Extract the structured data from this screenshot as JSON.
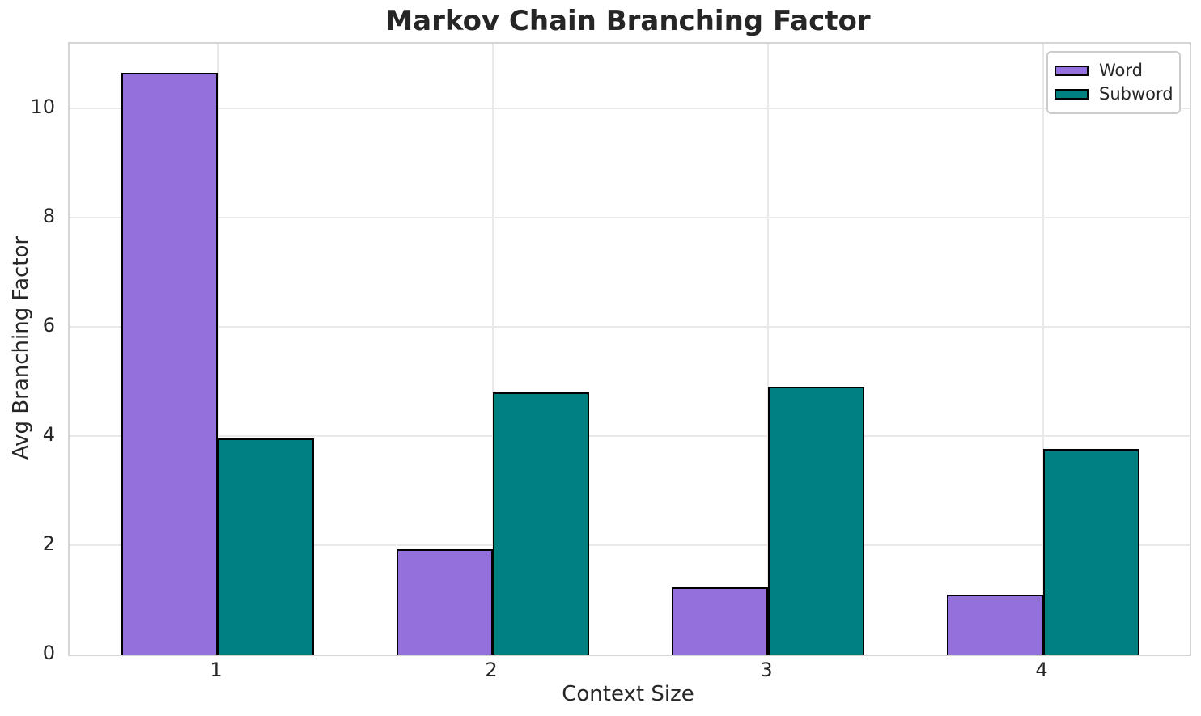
{
  "chart_data": {
    "type": "bar",
    "title": "Markov Chain Branching Factor",
    "xlabel": "Context Size",
    "ylabel": "Avg Branching Factor",
    "categories": [
      "1",
      "2",
      "3",
      "4"
    ],
    "series": [
      {
        "name": "Word",
        "color": "#9370DB",
        "values": [
          10.65,
          1.93,
          1.23,
          1.1
        ]
      },
      {
        "name": "Subword",
        "color": "#008080",
        "values": [
          3.95,
          4.8,
          4.9,
          3.76
        ]
      }
    ],
    "yticks": [
      0,
      2,
      4,
      6,
      8,
      10
    ],
    "ylim": [
      0,
      11.19
    ],
    "bar_edge_color": "#000000",
    "grid": true,
    "legend_position": "upper right",
    "colors": {
      "grid": "#e9e9e9",
      "spine": "#d5d5d5",
      "text": "#262626",
      "legend_border": "#cccccc",
      "background": "#ffffff"
    }
  }
}
